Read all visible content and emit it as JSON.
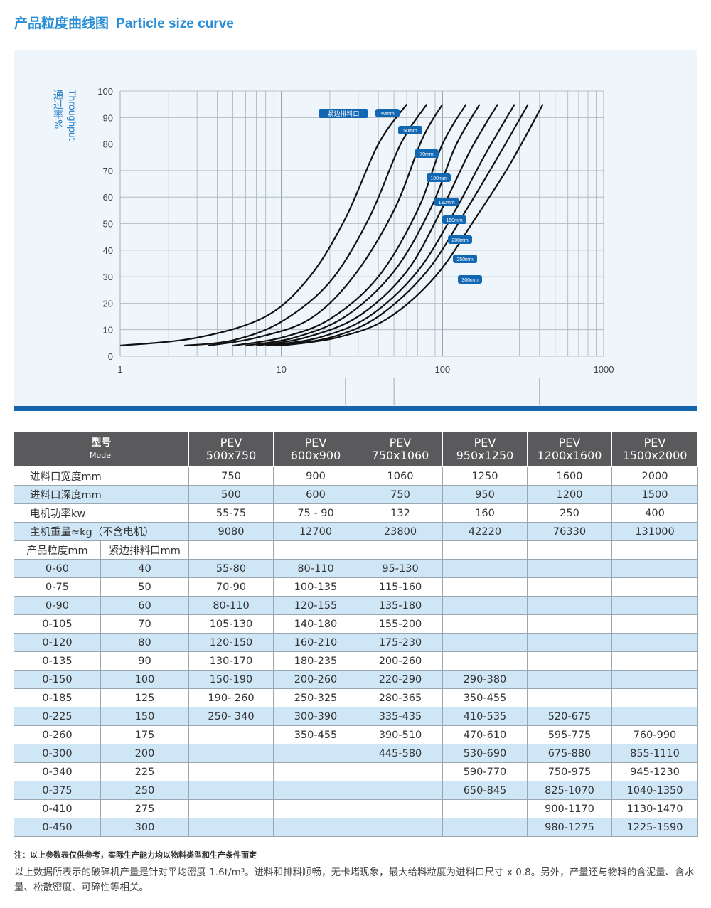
{
  "header": {
    "title_cn": "产品粒度曲线图",
    "title_en": "Particle size curve"
  },
  "chart_data": {
    "type": "line",
    "ylabel_cn": "通过率%",
    "ylabel_en": "Throughput",
    "xscale": "log",
    "xlim": [
      1,
      1000
    ],
    "ylim": [
      0,
      100
    ],
    "yticks": [
      0,
      10,
      20,
      30,
      40,
      50,
      60,
      70,
      80,
      90,
      100
    ],
    "xtick_labels": [
      "1",
      "10",
      "100",
      "1000"
    ],
    "grid": true,
    "legend_label": "紧边排料口",
    "series": [
      {
        "name": "40mm",
        "x": [
          1.0,
          3,
          8,
          15,
          25,
          40,
          60
        ],
        "y": [
          4,
          7,
          15,
          30,
          52,
          80,
          95
        ]
      },
      {
        "name": "50mm",
        "x": [
          2.5,
          5,
          10,
          20,
          35,
          55,
          80
        ],
        "y": [
          4,
          6,
          13,
          28,
          52,
          80,
          95
        ]
      },
      {
        "name": "70mm",
        "x": [
          3.5,
          7,
          15,
          28,
          50,
          75,
          100
        ],
        "y": [
          4,
          7,
          14,
          30,
          55,
          82,
          95
        ]
      },
      {
        "name": "100mm",
        "x": [
          5,
          10,
          20,
          40,
          70,
          100,
          140
        ],
        "y": [
          4,
          7,
          14,
          30,
          55,
          80,
          95
        ]
      },
      {
        "name": "130mm",
        "x": [
          6,
          12,
          25,
          50,
          85,
          120,
          170
        ],
        "y": [
          4,
          7,
          15,
          32,
          56,
          79,
          95
        ]
      },
      {
        "name": "160mm",
        "x": [
          7,
          14,
          30,
          60,
          100,
          150,
          220
        ],
        "y": [
          4,
          7,
          15,
          32,
          56,
          78,
          95
        ]
      },
      {
        "name": "200mm",
        "x": [
          8,
          17,
          35,
          70,
          120,
          180,
          280
        ],
        "y": [
          4,
          7,
          15,
          32,
          55,
          75,
          95
        ]
      },
      {
        "name": "250mm",
        "x": [
          9,
          20,
          40,
          80,
          140,
          220,
          340
        ],
        "y": [
          4,
          7,
          15,
          32,
          55,
          75,
          95
        ]
      },
      {
        "name": "300mm",
        "x": [
          10,
          22,
          45,
          90,
          160,
          260,
          420
        ],
        "y": [
          4,
          7,
          14,
          30,
          52,
          72,
          95
        ]
      }
    ]
  },
  "table": {
    "model_cn": "型号",
    "model_en": "Model",
    "models": [
      {
        "pev": "PEV",
        "dim": "500x750"
      },
      {
        "pev": "PEV",
        "dim": "600x900"
      },
      {
        "pev": "PEV",
        "dim": "750x1060"
      },
      {
        "pev": "PEV",
        "dim": "950x1250"
      },
      {
        "pev": "PEV",
        "dim": "1200x1600"
      },
      {
        "pev": "PEV",
        "dim": "1500x2000"
      }
    ],
    "spec_rows": [
      {
        "label": "进料口宽度mm",
        "values": [
          "750",
          "900",
          "1060",
          "1250",
          "1600",
          "2000"
        ]
      },
      {
        "label": "进料口深度mm",
        "values": [
          "500",
          "600",
          "750",
          "950",
          "1200",
          "1500"
        ]
      },
      {
        "label": "电机功率kw",
        "values": [
          "55-75",
          "75 - 90",
          "132",
          "160",
          "250",
          "400"
        ]
      },
      {
        "label": "主机重量≈kg（不含电机）",
        "values": [
          "9080",
          "12700",
          "23800",
          "42220",
          "76330",
          "131000"
        ]
      }
    ],
    "sub_header": {
      "col1": "产品粒度mm",
      "col2": "紧边排料口mm"
    },
    "size_rows": [
      {
        "size": "0-60",
        "gap": "40",
        "values": [
          "55-80",
          "80-110",
          "95-130",
          "",
          "",
          ""
        ]
      },
      {
        "size": "0-75",
        "gap": "50",
        "values": [
          "70-90",
          "100-135",
          "115-160",
          "",
          "",
          ""
        ]
      },
      {
        "size": "0-90",
        "gap": "60",
        "values": [
          "80-110",
          "120-155",
          "135-180",
          "",
          "",
          ""
        ]
      },
      {
        "size": "0-105",
        "gap": "70",
        "values": [
          "105-130",
          "140-180",
          "155-200",
          "",
          "",
          ""
        ]
      },
      {
        "size": "0-120",
        "gap": "80",
        "values": [
          "120-150",
          "160-210",
          "175-230",
          "",
          "",
          ""
        ]
      },
      {
        "size": "0-135",
        "gap": "90",
        "values": [
          "130-170",
          "180-235",
          "200-260",
          "",
          "",
          ""
        ]
      },
      {
        "size": "0-150",
        "gap": "100",
        "values": [
          "150-190",
          "200-260",
          "220-290",
          "290-380",
          "",
          ""
        ]
      },
      {
        "size": "0-185",
        "gap": "125",
        "values": [
          "190- 260",
          "250-325",
          "280-365",
          "350-455",
          "",
          ""
        ]
      },
      {
        "size": "0-225",
        "gap": "150",
        "values": [
          "250- 340",
          "300-390",
          "335-435",
          "410-535",
          "520-675",
          ""
        ]
      },
      {
        "size": "0-260",
        "gap": "175",
        "values": [
          "",
          "350-455",
          "390-510",
          "470-610",
          "595-775",
          "760-990"
        ]
      },
      {
        "size": "0-300",
        "gap": "200",
        "values": [
          "",
          "",
          "445-580",
          "530-690",
          "675-880",
          "855-1110"
        ]
      },
      {
        "size": "0-340",
        "gap": "225",
        "values": [
          "",
          "",
          "",
          "590-770",
          "750-975",
          "945-1230"
        ]
      },
      {
        "size": "0-375",
        "gap": "250",
        "values": [
          "",
          "",
          "",
          "650-845",
          "825-1070",
          "1040-1350"
        ]
      },
      {
        "size": "0-410",
        "gap": "275",
        "values": [
          "",
          "",
          "",
          "",
          "900-1170",
          "1130-1470"
        ]
      },
      {
        "size": "0-450",
        "gap": "300",
        "values": [
          "",
          "",
          "",
          "",
          "980-1275",
          "1225-1590"
        ]
      }
    ]
  },
  "notes": {
    "bold": "注：以上参数表仅供参考，实际生产能力均以物料类型和生产条件而定",
    "body": "以上数据所表示的破碎机产量是针对平均密度 1.6t/m³。进料和排料顺畅，无卡堵现象，最大给料粒度为进料口尺寸 x 0.8。另外，产量还与物料的含泥量、含水量、松散密度、可碎性等相关。"
  },
  "colors": {
    "title": "#2a8fd6",
    "chart_bg": "#eef6fc",
    "rule": "#1565b0",
    "label_bg": "#1267b3",
    "header_bg": "#5a5a5c",
    "row_alt": "#cfe6f7"
  }
}
